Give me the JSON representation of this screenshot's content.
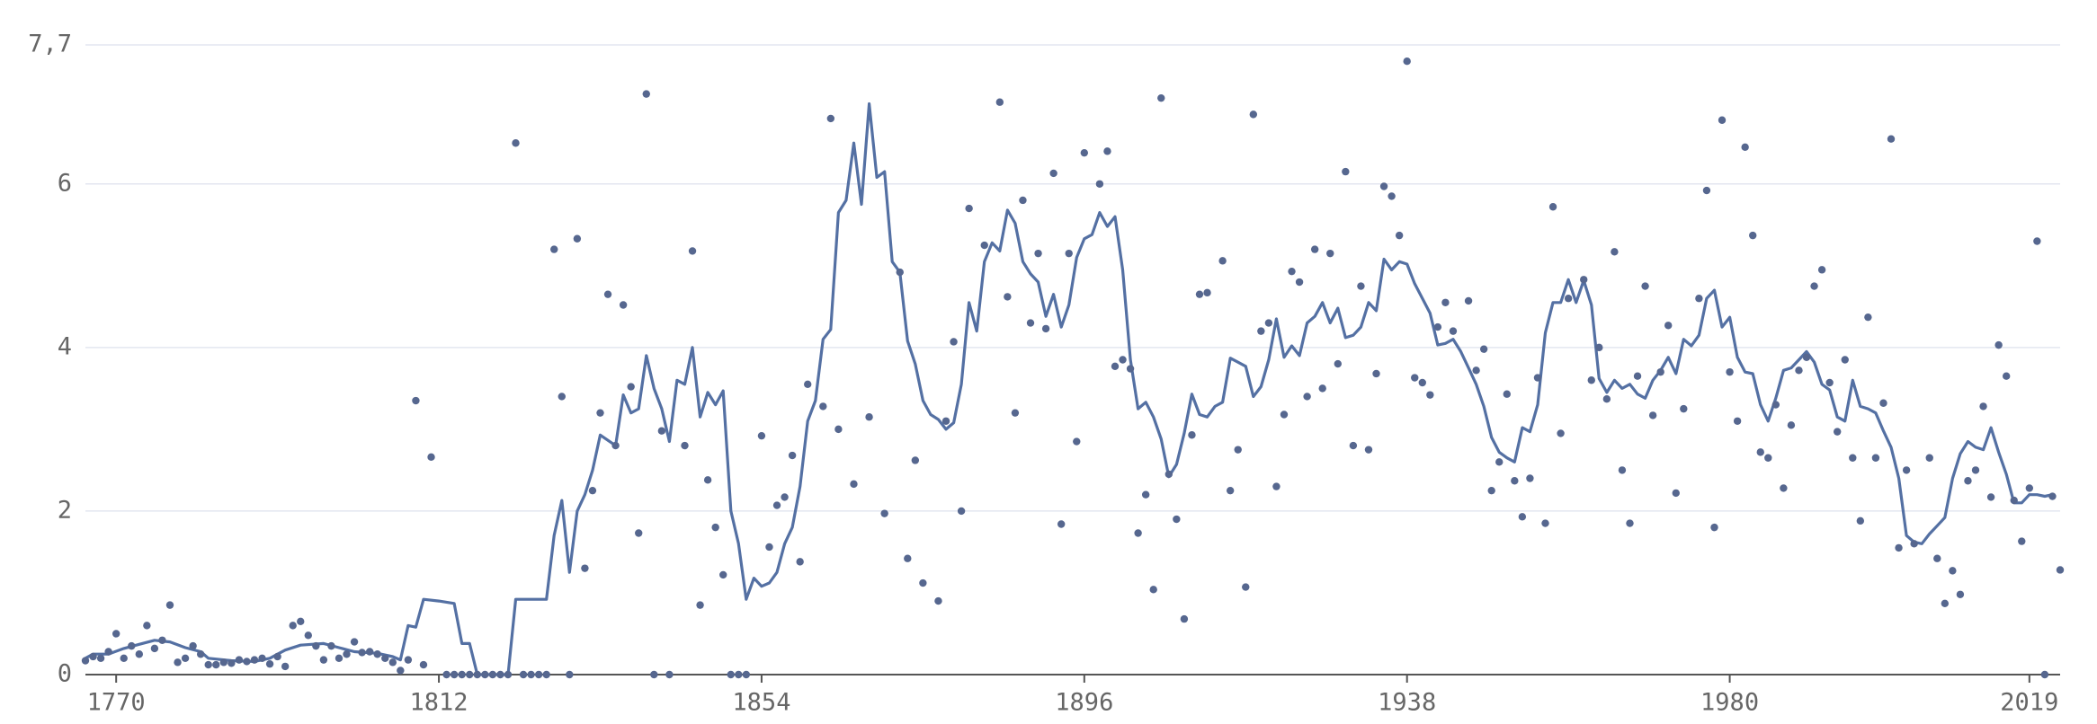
{
  "chart_data": {
    "type": "scatter",
    "color": "#56678f",
    "line_color": "#5470a3",
    "xlim": [
      1766,
      2023
    ],
    "xticks": [
      1770,
      1812,
      1854,
      1896,
      1938,
      1980,
      2019
    ],
    "ylim": [
      0,
      7.7
    ],
    "yticks": [
      0,
      2,
      4,
      6,
      {
        "value": 7.7,
        "label": "7,7"
      }
    ],
    "grid": true,
    "x": [
      1766,
      1767,
      1768,
      1769,
      1770,
      1771,
      1772,
      1773,
      1774,
      1775,
      1776,
      1777,
      1778,
      1779,
      1780,
      1781,
      1782,
      1783,
      1784,
      1785,
      1786,
      1787,
      1788,
      1789,
      1790,
      1791,
      1792,
      1793,
      1794,
      1795,
      1796,
      1797,
      1798,
      1799,
      1800,
      1801,
      1802,
      1803,
      1804,
      1805,
      1806,
      1807,
      1808,
      1809,
      1810,
      1811,
      1813,
      1814,
      1815,
      1816,
      1817,
      1818,
      1819,
      1820,
      1821,
      1822,
      1823,
      1824,
      1825,
      1826,
      1827,
      1828,
      1829,
      1830,
      1831,
      1832,
      1833,
      1834,
      1835,
      1836,
      1837,
      1838,
      1839,
      1840,
      1841,
      1842,
      1844,
      1845,
      1846,
      1847,
      1848,
      1849,
      1850,
      1851,
      1852,
      1854,
      1855,
      1856,
      1857,
      1858,
      1859,
      1860,
      1862,
      1863,
      1864,
      1866,
      1868,
      1870,
      1872,
      1873,
      1874,
      1875,
      1877,
      1878,
      1879,
      1880,
      1881,
      1883,
      1885,
      1886,
      1887,
      1888,
      1889,
      1890,
      1891,
      1892,
      1893,
      1894,
      1895,
      1896,
      1898,
      1899,
      1900,
      1901,
      1902,
      1903,
      1904,
      1905,
      1906,
      1907,
      1908,
      1909,
      1910,
      1911,
      1912,
      1914,
      1915,
      1916,
      1917,
      1918,
      1919,
      1920,
      1921,
      1922,
      1923,
      1924,
      1925,
      1926,
      1927,
      1928,
      1929,
      1930,
      1931,
      1932,
      1933,
      1934,
      1935,
      1936,
      1937,
      1938,
      1939,
      1940,
      1941,
      1942,
      1943,
      1944,
      1946,
      1947,
      1948,
      1949,
      1950,
      1951,
      1952,
      1953,
      1954,
      1955,
      1956,
      1957,
      1958,
      1959,
      1961,
      1962,
      1963,
      1964,
      1965,
      1966,
      1967,
      1968,
      1969,
      1970,
      1971,
      1972,
      1973,
      1974,
      1976,
      1977,
      1978,
      1979,
      1980,
      1981,
      1982,
      1983,
      1984,
      1985,
      1986,
      1987,
      1988,
      1989,
      1990,
      1991,
      1992,
      1993,
      1994,
      1995,
      1996,
      1997,
      1998,
      1999,
      2000,
      2001,
      2002,
      2003,
      2004,
      2006,
      2007,
      2008,
      2009,
      2010,
      2011,
      2012,
      2013,
      2014,
      2015,
      2016,
      2017,
      2018,
      2019,
      2020,
      2021,
      2022,
      2023
    ],
    "values": [
      0.17,
      0.22,
      0.2,
      0.28,
      0.5,
      0.2,
      0.35,
      0.25,
      0.6,
      0.32,
      0.42,
      0.85,
      0.15,
      0.2,
      0.35,
      0.25,
      0.12,
      0.12,
      0.15,
      0.14,
      0.18,
      0.16,
      0.18,
      0.2,
      0.13,
      0.22,
      0.1,
      0.6,
      0.65,
      0.48,
      0.35,
      0.18,
      0.35,
      0.2,
      0.25,
      0.4,
      0.27,
      0.28,
      0.25,
      0.2,
      0.15,
      0.05,
      0.18,
      3.35,
      0.12,
      2.66,
      0,
      0,
      0,
      0,
      0,
      0,
      0,
      0,
      0,
      6.5,
      0,
      0,
      0,
      0,
      5.2,
      3.4,
      0,
      5.33,
      1.3,
      2.25,
      3.2,
      4.65,
      2.8,
      4.52,
      3.52,
      1.73,
      7.1,
      0,
      2.98,
      0,
      2.8,
      5.18,
      0.85,
      2.38,
      1.8,
      1.22,
      0,
      0,
      0,
      2.92,
      1.56,
      2.07,
      2.17,
      2.68,
      1.38,
      3.55,
      3.28,
      6.8,
      3.0,
      2.33,
      3.15,
      1.97,
      4.92,
      1.42,
      2.62,
      1.12,
      0.9,
      3.1,
      4.07,
      2.0,
      5.7,
      5.25,
      7.0,
      4.62,
      3.2,
      5.8,
      4.3,
      5.15,
      4.23,
      6.13,
      1.84,
      5.15,
      2.85,
      6.38,
      6.0,
      6.4,
      3.77,
      3.85,
      3.74,
      1.73,
      2.2,
      1.04,
      7.05,
      2.45,
      1.9,
      0.68,
      2.93,
      4.65,
      4.67,
      5.06,
      2.25,
      2.75,
      1.07,
      6.85,
      4.2,
      4.3,
      2.3,
      3.18,
      4.93,
      4.8,
      3.4,
      5.2,
      3.5,
      5.15,
      3.8,
      6.15,
      2.8,
      4.75,
      2.75,
      3.68,
      5.97,
      5.85,
      5.37,
      7.5,
      3.63,
      3.57,
      3.42,
      4.25,
      4.55,
      4.2,
      4.57,
      3.72,
      3.98,
      2.25,
      2.6,
      3.43,
      2.37,
      1.93,
      2.4,
      3.63,
      1.85,
      5.72,
      2.95,
      4.6,
      4.83,
      3.6,
      4.0,
      3.37,
      5.17,
      2.5,
      1.85,
      3.65,
      4.75,
      3.17,
      3.7,
      4.27,
      2.22,
      3.25,
      4.6,
      5.92,
      1.8,
      6.78,
      3.7,
      3.1,
      6.45,
      5.37,
      2.72,
      2.65,
      3.3,
      2.28,
      3.05,
      3.72,
      3.88,
      4.75,
      4.95,
      3.57,
      2.97,
      3.85,
      2.65,
      1.88,
      4.37,
      2.65,
      3.32,
      6.55,
      1.55,
      2.5,
      1.6,
      2.65,
      1.42,
      0.87,
      1.27,
      0.98,
      2.37,
      2.5,
      3.28,
      2.17,
      4.03,
      3.65,
      2.13,
      1.63,
      2.28,
      5.3,
      0,
      2.18,
      1.28
    ],
    "line": {
      "x": [
        1766,
        1767,
        1769,
        1771,
        1773,
        1775,
        1777,
        1779,
        1781,
        1782,
        1785,
        1788,
        1790,
        1792,
        1794,
        1797,
        1799,
        1801,
        1804,
        1806,
        1807,
        1808,
        1809,
        1810,
        1812,
        1814,
        1815,
        1816,
        1817,
        1821,
        1822,
        1826,
        1827,
        1828,
        1829,
        1830,
        1831,
        1832,
        1833,
        1835,
        1836,
        1837,
        1838,
        1839,
        1840,
        1841,
        1842,
        1843,
        1844,
        1845,
        1846,
        1847,
        1848,
        1849,
        1850,
        1851,
        1852,
        1853,
        1854,
        1855,
        1856,
        1857,
        1858,
        1859,
        1860,
        1861,
        1862,
        1863,
        1864,
        1865,
        1866,
        1867,
        1868,
        1869,
        1870,
        1871,
        1872,
        1873,
        1874,
        1875,
        1876,
        1877,
        1878,
        1879,
        1880,
        1881,
        1882,
        1883,
        1884,
        1885,
        1886,
        1887,
        1888,
        1889,
        1890,
        1891,
        1892,
        1893,
        1894,
        1895,
        1896,
        1897,
        1898,
        1899,
        1900,
        1901,
        1902,
        1903,
        1904,
        1905,
        1906,
        1907,
        1908,
        1909,
        1910,
        1911,
        1912,
        1913,
        1914,
        1915,
        1916,
        1917,
        1918,
        1919,
        1920,
        1921,
        1922,
        1923,
        1924,
        1925,
        1926,
        1927,
        1928,
        1929,
        1930,
        1931,
        1932,
        1933,
        1934,
        1935,
        1936,
        1937,
        1938,
        1939,
        1940,
        1941,
        1942,
        1943,
        1944,
        1945,
        1946,
        1947,
        1948,
        1949,
        1950,
        1951,
        1952,
        1953,
        1954,
        1955,
        1956,
        1957,
        1958,
        1959,
        1960,
        1961,
        1962,
        1963,
        1964,
        1965,
        1966,
        1967,
        1968,
        1969,
        1970,
        1971,
        1972,
        1973,
        1974,
        1975,
        1976,
        1977,
        1978,
        1979,
        1980,
        1981,
        1982,
        1983,
        1984,
        1985,
        1986,
        1987,
        1988,
        1989,
        1990,
        1991,
        1992,
        1993,
        1994,
        1995,
        1996,
        1997,
        1998,
        1999,
        2000,
        2001,
        2002,
        2003,
        2004,
        2005,
        2006,
        2007,
        2008,
        2009,
        2010,
        2011,
        2012,
        2013,
        2014,
        2015,
        2016,
        2017,
        2018,
        2019,
        2020,
        2021,
        2022
      ],
      "values": [
        0.2,
        0.25,
        0.25,
        0.32,
        0.37,
        0.42,
        0.4,
        0.33,
        0.28,
        0.2,
        0.17,
        0.16,
        0.2,
        0.3,
        0.36,
        0.38,
        0.33,
        0.28,
        0.26,
        0.22,
        0.18,
        0.6,
        0.58,
        0.92,
        0.9,
        0.87,
        0.38,
        0.38,
        0,
        0,
        0.92,
        0.92,
        1.7,
        2.13,
        1.25,
        2.0,
        2.2,
        2.5,
        2.93,
        2.8,
        3.42,
        3.2,
        3.25,
        3.9,
        3.5,
        3.25,
        2.85,
        3.6,
        3.55,
        4.0,
        3.15,
        3.45,
        3.3,
        3.47,
        2.0,
        1.6,
        0.92,
        1.18,
        1.08,
        1.12,
        1.25,
        1.6,
        1.8,
        2.3,
        3.1,
        3.35,
        4.1,
        4.22,
        5.65,
        5.8,
        6.5,
        5.75,
        6.98,
        6.08,
        6.15,
        5.05,
        4.92,
        4.08,
        3.8,
        3.35,
        3.18,
        3.12,
        3.0,
        3.08,
        3.55,
        4.55,
        4.2,
        5.05,
        5.28,
        5.18,
        5.68,
        5.52,
        5.05,
        4.9,
        4.8,
        4.38,
        4.65,
        4.25,
        4.52,
        5.1,
        5.33,
        5.38,
        5.65,
        5.48,
        5.6,
        4.95,
        3.85,
        3.25,
        3.33,
        3.15,
        2.88,
        2.42,
        2.57,
        2.95,
        3.43,
        3.18,
        3.15,
        3.28,
        3.33,
        3.87,
        3.82,
        3.77,
        3.4,
        3.52,
        3.85,
        4.35,
        3.88,
        4.02,
        3.9,
        4.3,
        4.38,
        4.55,
        4.3,
        4.48,
        4.12,
        4.15,
        4.25,
        4.55,
        4.45,
        5.08,
        4.95,
        5.05,
        5.02,
        4.78,
        4.6,
        4.42,
        4.03,
        4.05,
        4.1,
        3.95,
        3.75,
        3.55,
        3.28,
        2.9,
        2.72,
        2.65,
        2.6,
        3.02,
        2.97,
        3.3,
        4.18,
        4.55,
        4.55,
        4.83,
        4.55,
        4.82,
        4.52,
        3.62,
        3.45,
        3.6,
        3.5,
        3.55,
        3.43,
        3.38,
        3.6,
        3.72,
        3.88,
        3.68,
        4.1,
        4.02,
        4.15,
        4.6,
        4.7,
        4.25,
        4.37,
        3.88,
        3.7,
        3.68,
        3.3,
        3.1,
        3.38,
        3.72,
        3.75,
        3.85,
        3.95,
        3.82,
        3.55,
        3.48,
        3.15,
        3.1,
        3.6,
        3.28,
        3.25,
        3.2,
        2.98,
        2.78,
        2.4,
        1.7,
        1.62,
        1.6,
        1.72,
        1.82,
        1.92,
        2.4,
        2.7,
        2.85,
        2.78,
        2.75,
        3.02,
        2.72,
        2.45,
        2.1,
        2.1,
        2.2,
        2.2,
        2.18,
        2.2
      ]
    }
  }
}
